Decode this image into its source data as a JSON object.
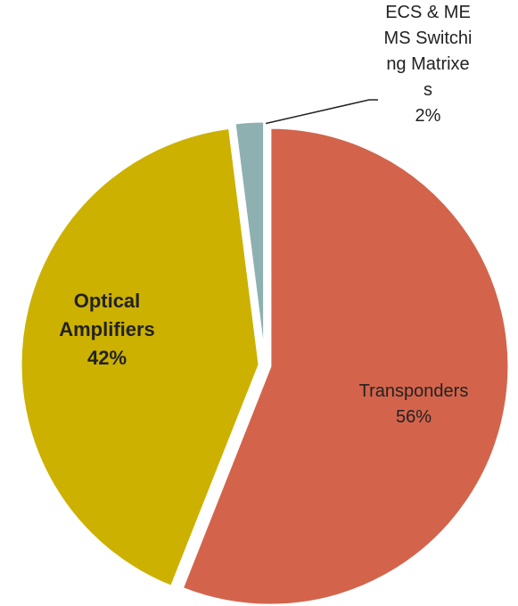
{
  "chart_data": {
    "type": "pie",
    "categories": [
      "Transponders",
      "Optical Amplifiers",
      "ECS & MEMS Switching Matrixes"
    ],
    "values": [
      56,
      42,
      2
    ],
    "value_labels": [
      "56%",
      "42%",
      "2%"
    ],
    "colors": [
      "#d3644b",
      "#ccb100",
      "#8fb0b0"
    ]
  }
}
